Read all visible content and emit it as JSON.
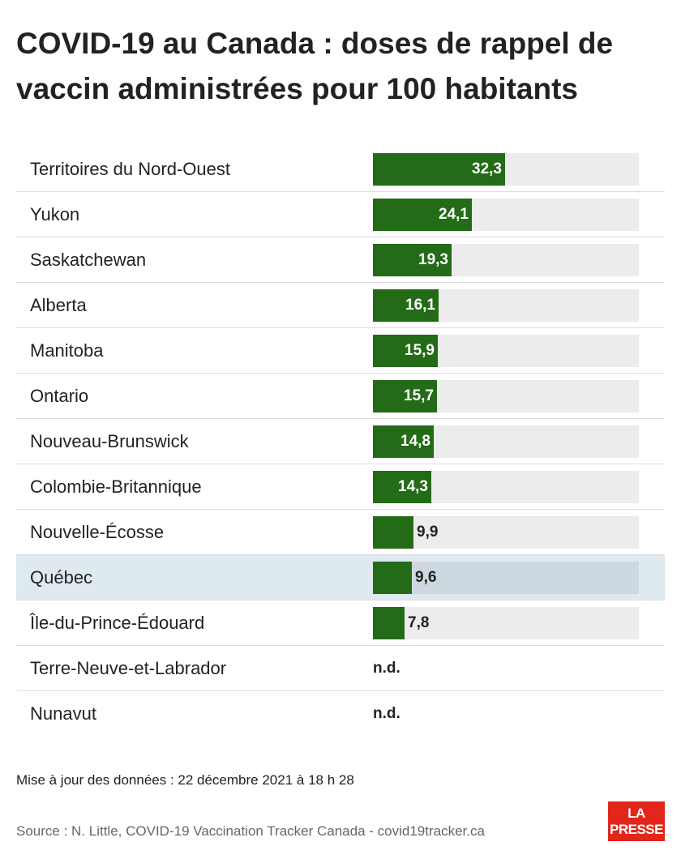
{
  "chart_data": {
    "type": "bar",
    "orientation": "horizontal",
    "title": "COVID-19 au Canada : doses de rappel de vaccin administrées pour 100 habitants",
    "xlim": [
      0,
      65
    ],
    "highlight": "Québec",
    "rows": [
      {
        "label": "Territoires du Nord-Ouest",
        "value": 32.3,
        "display": "32,3"
      },
      {
        "label": "Yukon",
        "value": 24.1,
        "display": "24,1"
      },
      {
        "label": "Saskatchewan",
        "value": 19.3,
        "display": "19,3"
      },
      {
        "label": "Alberta",
        "value": 16.1,
        "display": "16,1"
      },
      {
        "label": "Manitoba",
        "value": 15.9,
        "display": "15,9"
      },
      {
        "label": "Ontario",
        "value": 15.7,
        "display": "15,7"
      },
      {
        "label": "Nouveau-Brunswick",
        "value": 14.8,
        "display": "14,8"
      },
      {
        "label": "Colombie-Britannique",
        "value": 14.3,
        "display": "14,3"
      },
      {
        "label": "Nouvelle-Écosse",
        "value": 9.9,
        "display": "9,9"
      },
      {
        "label": "Québec",
        "value": 9.6,
        "display": "9,6"
      },
      {
        "label": "Île-du-Prince-Édouard",
        "value": 7.8,
        "display": "7,8"
      },
      {
        "label": "Terre-Neuve-et-Labrador",
        "value": null,
        "display": "n.d."
      },
      {
        "label": "Nunavut",
        "value": null,
        "display": "n.d."
      }
    ],
    "colors": {
      "bar": "#236b17",
      "track": "#ececec",
      "highlight_row": "#dfe9f0"
    }
  },
  "footer": {
    "updated": "Mise à jour des données : 22 décembre 2021 à 18 h 28",
    "source": "Source : N. Little, COVID-19 Vaccination Tracker Canada - covid19tracker.ca"
  },
  "logo": {
    "line1": "LA",
    "line2": "PRESSE",
    "color": "#e3261b"
  }
}
